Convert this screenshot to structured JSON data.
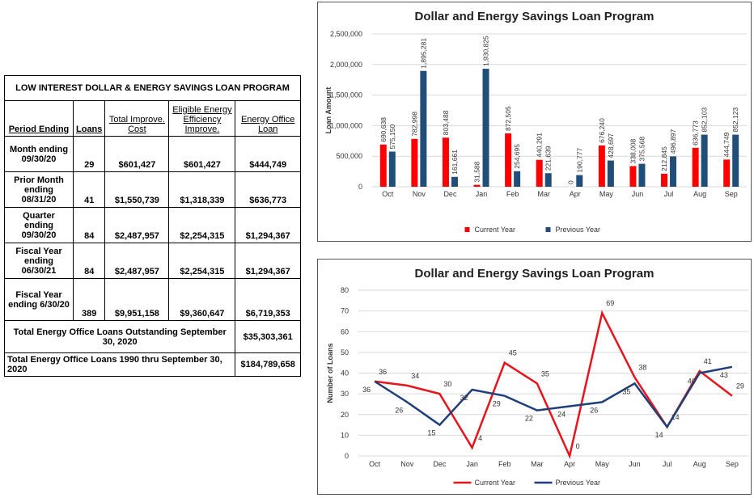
{
  "table": {
    "title": "LOW INTEREST DOLLAR & ENERGY SAVINGS LOAN PROGRAM",
    "header": [
      "Period Ending",
      "Loans",
      "Total Improve. Cost",
      "Eligible Energy Efficiency Improve.",
      "Energy Office Loan"
    ],
    "rows": [
      [
        "Month ending 09/30/20",
        "29",
        "$601,427",
        "$601,427",
        "$444,749"
      ],
      [
        "Prior Month ending 08/31/20",
        "41",
        "$1,550,739",
        "$1,318,339",
        "$636,773"
      ],
      [
        "Quarter ending 09/30/20",
        "84",
        "$2,487,957",
        "$2,254,315",
        "$1,294,367"
      ],
      [
        "Fiscal Year ending 06/30/21",
        "84",
        "$2,487,957",
        "$2,254,315",
        "$1,294,367"
      ],
      [
        "Fiscal Year ending 6/30/20",
        "389",
        "$9,951,158",
        "$9,360,647",
        "$6,719,353"
      ]
    ],
    "totals": [
      [
        "Total Energy Office Loans Outstanding September 30, 2020",
        "$35,303,361"
      ],
      [
        "Total Energy Office Loans 1990 thru September 30, 2020",
        "$184,789,658"
      ]
    ]
  },
  "chart_data": [
    {
      "type": "bar",
      "title": "Dollar and Energy Savings Loan Program",
      "y_label": "Loan Amount",
      "categories": [
        "Oct",
        "Nov",
        "Dec",
        "Jan",
        "Feb",
        "Mar",
        "Apr",
        "May",
        "Jun",
        "Jul",
        "Aug",
        "Sep"
      ],
      "series": [
        {
          "name": "Current Year",
          "color": "#ff0000",
          "values": [
            690638,
            782998,
            803488,
            31588,
            872505,
            440291,
            0,
            676240,
            338008,
            212845,
            636773,
            444749
          ],
          "value_labels": [
            "690,638",
            "782,998",
            "803,488",
            "31,588",
            "872,505",
            "440,291",
            "0",
            "676,240",
            "338,008",
            "212,845",
            "636,773",
            "444,749"
          ]
        },
        {
          "name": "Previous Year",
          "color": "#1f4e79",
          "values": [
            575150,
            1895281,
            161661,
            1930825,
            254695,
            221639,
            190777,
            428697,
            375568,
            496897,
            852103,
            852123
          ],
          "value_labels": [
            "575,150",
            "1,895,281",
            "161,661",
            "1,930,825",
            "254,695",
            "221,639",
            "190,777",
            "428,697",
            "375,568",
            "496,897",
            "852,103",
            "852,123"
          ]
        }
      ],
      "ylim": [
        0,
        2500000
      ],
      "yticks": [
        0,
        {
          "value": 500000,
          "label": "500,000"
        },
        {
          "value": 1000000,
          "label": "1,000,000"
        },
        {
          "value": 1500000,
          "label": "1,500,000"
        },
        {
          "value": 2000000,
          "label": "2,000,000"
        },
        {
          "value": 2500000,
          "label": "2,500,000"
        }
      ],
      "grid": true,
      "legend": "bottom"
    },
    {
      "type": "line",
      "title": "Dollar and Energy Savings Loan Program",
      "y_label": "Number of Loans",
      "categories": [
        "Oct",
        "Nov",
        "Dec",
        "Jan",
        "Feb",
        "Mar",
        "Apr",
        "May",
        "Jun",
        "Jul",
        "Aug",
        "Sep"
      ],
      "series": [
        {
          "name": "Current Year",
          "color": "#e8141b",
          "values": [
            36,
            34,
            30,
            4,
            45,
            35,
            0,
            69,
            38,
            14,
            41,
            29
          ]
        },
        {
          "name": "Previous Year",
          "color": "#1f3f7a",
          "values": [
            36,
            26,
            15,
            32,
            29,
            22,
            24,
            26,
            35,
            14,
            40,
            43
          ]
        }
      ],
      "ylim": [
        0,
        80
      ],
      "yticks": [
        0,
        10,
        20,
        30,
        40,
        50,
        60,
        70,
        80
      ],
      "grid": true,
      "legend": "bottom"
    }
  ]
}
